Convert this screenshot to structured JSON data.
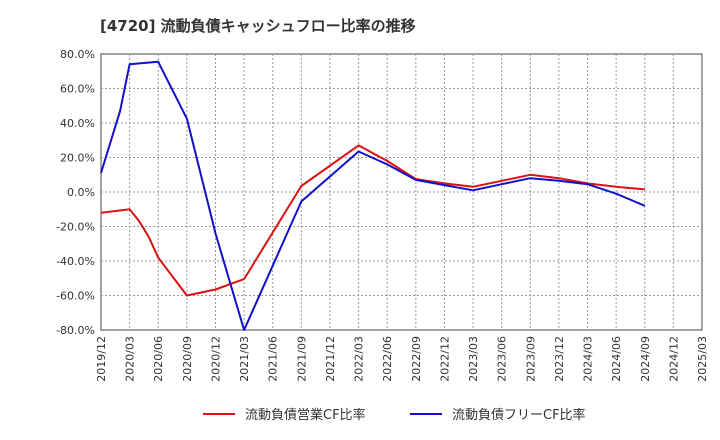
{
  "chart_data": {
    "type": "line",
    "title": "[4720]  流動負債キャッシュフロー比率の推移",
    "xlabel": "",
    "ylabel": "",
    "ylim": [
      -80,
      80
    ],
    "y_ticks": [
      "80.0%",
      "60.0%",
      "40.0%",
      "20.0%",
      "0.0%",
      "-20.0%",
      "-40.0%",
      "-60.0%",
      "-80.0%"
    ],
    "x_ticks": [
      "2019/12",
      "2020/03",
      "2020/06",
      "2020/09",
      "2020/12",
      "2021/03",
      "2021/06",
      "2021/09",
      "2021/12",
      "2022/03",
      "2022/06",
      "2022/09",
      "2022/12",
      "2023/03",
      "2023/06",
      "2023/09",
      "2023/12",
      "2024/03",
      "2024/06",
      "2024/09",
      "2024/12",
      "2025/03"
    ],
    "grid": true,
    "legend_position": "bottom",
    "series": [
      {
        "name": "流動負債営業CF比率",
        "color": "#dd1111",
        "x": [
          "2019/12",
          "2020/03",
          "2020/04",
          "2020/05",
          "2020/06",
          "2020/09",
          "2020/12",
          "2021/03",
          "2021/09",
          "2022/03",
          "2022/06",
          "2022/09",
          "2022/12",
          "2023/03",
          "2023/06",
          "2023/09",
          "2023/12",
          "2024/03",
          "2024/06",
          "2024/09"
        ],
        "values": [
          -12,
          -10,
          -17,
          -26,
          -38,
          -60,
          -56.5,
          -50.5,
          3.5,
          27,
          18,
          7.5,
          5,
          3,
          6.5,
          10,
          8,
          5,
          3,
          1.5
        ]
      },
      {
        "name": "流動負債フリーCF比率",
        "color": "#1111cc",
        "x": [
          "2019/12",
          "2020/02",
          "2020/03",
          "2020/06",
          "2020/09",
          "2020/12",
          "2021/03",
          "2021/09",
          "2022/03",
          "2022/06",
          "2022/09",
          "2022/12",
          "2023/03",
          "2023/06",
          "2023/09",
          "2023/12",
          "2024/03",
          "2024/06",
          "2024/09"
        ],
        "values": [
          11,
          47,
          74,
          75.5,
          42.5,
          -24,
          -80,
          -5.5,
          23.5,
          16,
          7,
          4,
          1,
          4.5,
          8,
          6.5,
          4.5,
          -1,
          -8
        ]
      }
    ]
  }
}
